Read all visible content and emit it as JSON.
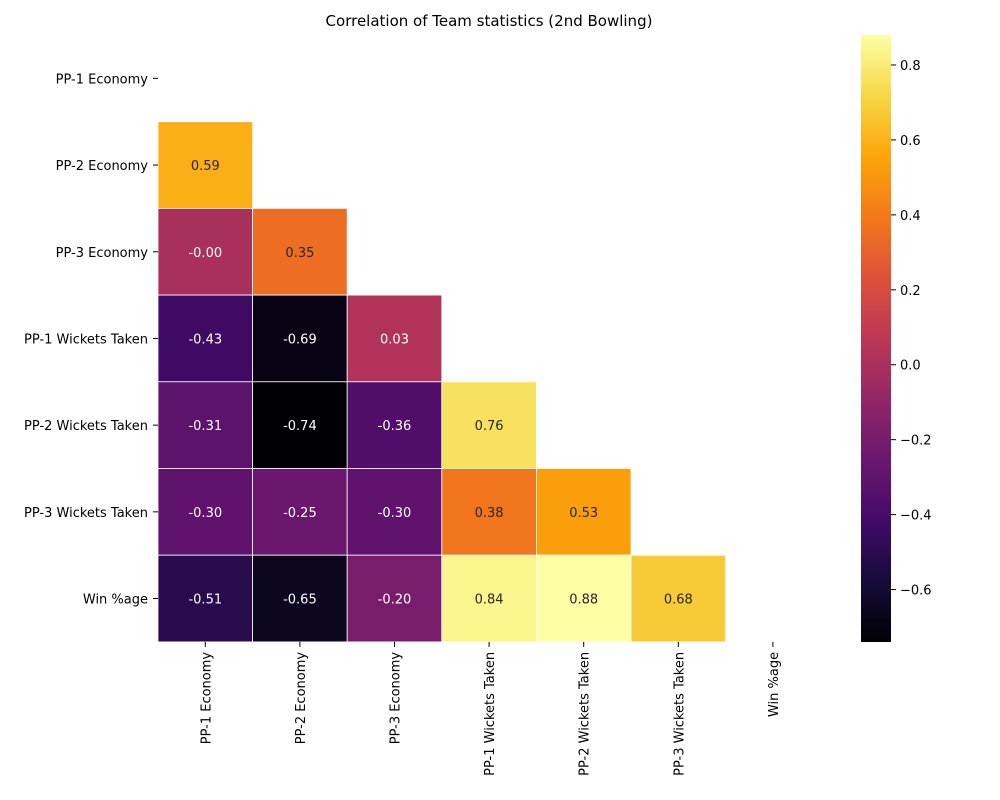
{
  "chart_data": {
    "type": "heatmap",
    "title": "Correlation of Team statistics (2nd Bowling)",
    "labels": [
      "PP-1 Economy",
      "PP-2 Economy",
      "PP-3 Economy",
      "PP-1 Wickets Taken",
      "PP-2 Wickets Taken",
      "PP-3 Wickets Taken",
      "Win %age"
    ],
    "mask": "upper-triangle-including-diagonal",
    "values": [
      [
        null,
        null,
        null,
        null,
        null,
        null,
        null
      ],
      [
        0.59,
        null,
        null,
        null,
        null,
        null,
        null
      ],
      [
        -0.0,
        0.35,
        null,
        null,
        null,
        null,
        null
      ],
      [
        -0.43,
        -0.69,
        0.03,
        null,
        null,
        null,
        null
      ],
      [
        -0.31,
        -0.74,
        -0.36,
        0.76,
        null,
        null,
        null
      ],
      [
        -0.3,
        -0.25,
        -0.3,
        0.38,
        0.53,
        null,
        null
      ],
      [
        -0.51,
        -0.65,
        -0.2,
        0.84,
        0.88,
        0.68,
        null
      ]
    ],
    "value_labels": [
      [],
      [
        "0.59"
      ],
      [
        "-0.00",
        "0.35"
      ],
      [
        "-0.43",
        "-0.69",
        "0.03"
      ],
      [
        "-0.31",
        "-0.74",
        "-0.36",
        "0.76"
      ],
      [
        "-0.30",
        "-0.25",
        "-0.30",
        "0.38",
        "0.53"
      ],
      [
        "-0.51",
        "-0.65",
        "-0.20",
        "0.84",
        "0.88",
        "0.68"
      ]
    ],
    "colormap": "inferno",
    "vmin": -0.74,
    "vmax": 0.88,
    "colorbar_ticks": [
      "0.8",
      "0.6",
      "0.4",
      "0.2",
      "0.0",
      "−0.2",
      "−0.4",
      "−0.6"
    ],
    "colorbar_tick_values": [
      0.8,
      0.6,
      0.4,
      0.2,
      0.0,
      -0.2,
      -0.4,
      -0.6
    ],
    "grid": false,
    "colorbar_position": "right"
  }
}
